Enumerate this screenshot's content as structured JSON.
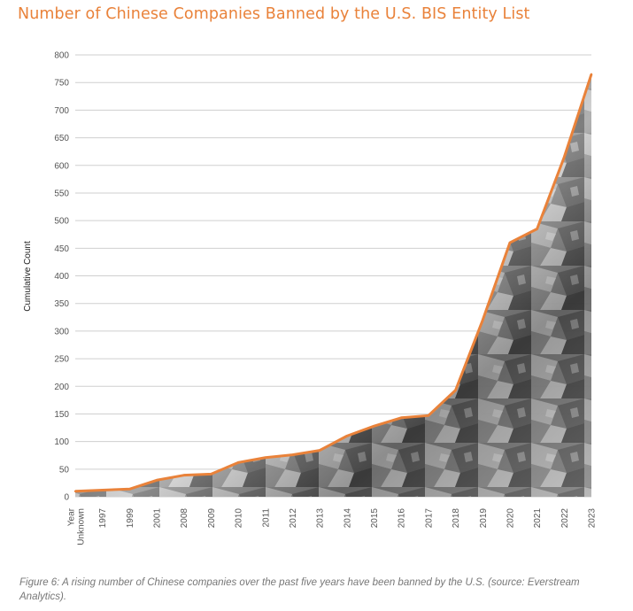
{
  "title": "Number of Chinese Companies Banned by the U.S. BIS Entity List",
  "caption": "Figure 6: A rising number of Chinese companies over the past five years have been banned by the U.S. (source: Everstream Analytics).",
  "colors": {
    "title": "#e9823a",
    "line": "#e9823a",
    "grid": "#cfcfcf"
  },
  "chart_data": {
    "type": "area",
    "title": "Number of Chinese Companies Banned by the U.S. BIS Entity List",
    "xlabel": "",
    "ylabel": "Cumulative Count",
    "categories": [
      "Year Unknown",
      "1997",
      "1999",
      "2001",
      "2008",
      "2009",
      "2010",
      "2011",
      "2012",
      "2013",
      "2014",
      "2015",
      "2016",
      "2017",
      "2018",
      "2019",
      "2020",
      "2021",
      "2022",
      "2023"
    ],
    "series": [
      {
        "values": [
          10,
          12,
          14,
          30,
          39,
          41,
          62,
          71,
          76,
          84,
          110,
          128,
          143,
          147,
          193,
          320,
          460,
          485,
          615,
          765
        ]
      }
    ],
    "ylim": [
      0,
      800
    ],
    "yticks": [
      0,
      50,
      100,
      150,
      200,
      250,
      300,
      350,
      400,
      450,
      500,
      550,
      600,
      650,
      700,
      750,
      800
    ],
    "grid": true,
    "fill": "textured grey rock photograph"
  }
}
